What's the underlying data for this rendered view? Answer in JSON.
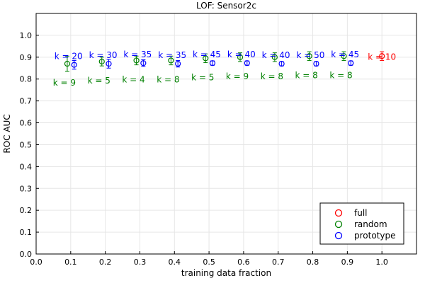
{
  "chart_data": {
    "type": "scatter",
    "title": "LOF: Sensor2c",
    "xlabel": "training data fraction",
    "ylabel": "ROC AUC",
    "xlim": [
      0.0,
      1.1
    ],
    "ylim": [
      0.0,
      1.1
    ],
    "xticks": [
      0.0,
      0.1,
      0.2,
      0.3,
      0.4,
      0.5,
      0.6,
      0.7,
      0.8,
      0.9,
      1.0
    ],
    "yticks": [
      0.0,
      0.1,
      0.2,
      0.3,
      0.4,
      0.5,
      0.6,
      0.7,
      0.8,
      0.9,
      1.0
    ],
    "xtick_labels": [
      "0.0",
      "0.1",
      "0.2",
      "0.3",
      "0.4",
      "0.5",
      "0.6",
      "0.7",
      "0.8",
      "0.9",
      "1.0"
    ],
    "ytick_labels": [
      "0.0",
      "0.1",
      "0.2",
      "0.3",
      "0.4",
      "0.5",
      "0.6",
      "0.7",
      "0.8",
      "0.9",
      "1.0"
    ],
    "grid": true,
    "legend_position": "bottom-right",
    "series": [
      {
        "name": "full",
        "color": "#ff0000",
        "points": [
          {
            "x": 1.0,
            "y": 0.905,
            "err": 0.02,
            "label": "k = 10"
          }
        ]
      },
      {
        "name": "random",
        "color": "#008000",
        "points": [
          {
            "x": 0.09,
            "y": 0.87,
            "err": 0.035,
            "label": "k = 9"
          },
          {
            "x": 0.19,
            "y": 0.88,
            "err": 0.02,
            "label": "k = 5"
          },
          {
            "x": 0.29,
            "y": 0.885,
            "err": 0.02,
            "label": "k = 4"
          },
          {
            "x": 0.39,
            "y": 0.885,
            "err": 0.02,
            "label": "k = 8"
          },
          {
            "x": 0.49,
            "y": 0.895,
            "err": 0.02,
            "label": "k = 5"
          },
          {
            "x": 0.59,
            "y": 0.9,
            "err": 0.02,
            "label": "k = 9"
          },
          {
            "x": 0.69,
            "y": 0.9,
            "err": 0.02,
            "label": "k = 8"
          },
          {
            "x": 0.79,
            "y": 0.905,
            "err": 0.02,
            "label": "k = 8"
          },
          {
            "x": 0.89,
            "y": 0.905,
            "err": 0.02,
            "label": "k = 8"
          }
        ]
      },
      {
        "name": "prototype",
        "color": "#0000ff",
        "points": [
          {
            "x": 0.11,
            "y": 0.865,
            "err": 0.02,
            "label": "k = 20"
          },
          {
            "x": 0.21,
            "y": 0.87,
            "err": 0.02,
            "label": "k = 30"
          },
          {
            "x": 0.31,
            "y": 0.873,
            "err": 0.015,
            "label": "k = 35"
          },
          {
            "x": 0.41,
            "y": 0.87,
            "err": 0.015,
            "label": "k = 35"
          },
          {
            "x": 0.51,
            "y": 0.873,
            "err": 0.01,
            "label": "k = 45"
          },
          {
            "x": 0.61,
            "y": 0.873,
            "err": 0.01,
            "label": "k = 40"
          },
          {
            "x": 0.71,
            "y": 0.87,
            "err": 0.01,
            "label": "k = 40"
          },
          {
            "x": 0.81,
            "y": 0.87,
            "err": 0.01,
            "label": "k = 50"
          },
          {
            "x": 0.91,
            "y": 0.873,
            "err": 0.01,
            "label": "k = 45"
          }
        ]
      }
    ]
  }
}
